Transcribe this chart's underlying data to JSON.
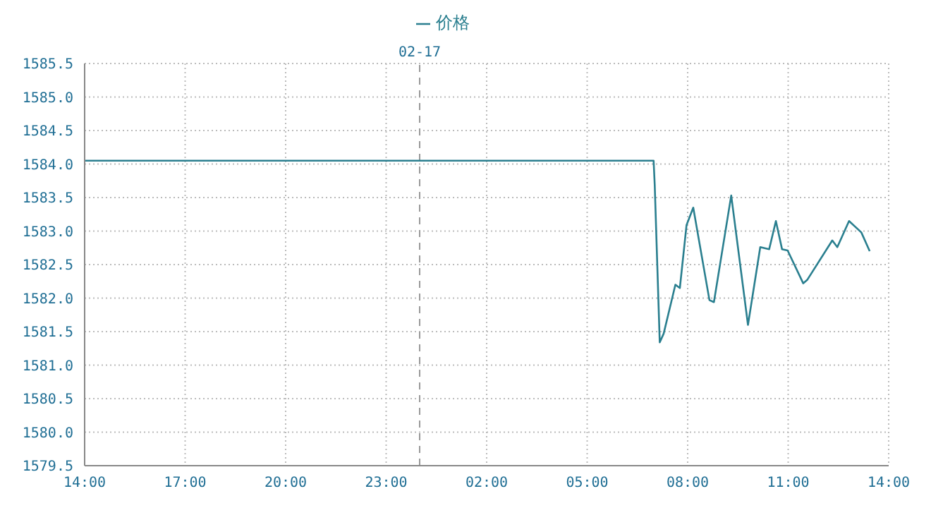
{
  "chart_data": {
    "type": "line",
    "x": [
      "--02-16T14:00",
      "--02-17T06:59",
      "--02-17T07:01",
      "--02-17T07:10",
      "--02-17T07:17",
      "--02-17T07:38",
      "--02-17T07:46",
      "--02-17T07:58",
      "--02-17T08:10",
      "--02-17T08:39",
      "--02-17T08:47",
      "--02-17T09:18",
      "--02-17T09:48",
      "--02-17T10:10",
      "--02-17T10:26",
      "--02-17T10:38",
      "--02-17T10:49",
      "--02-17T10:59",
      "--02-17T11:27",
      "--02-17T11:34",
      "--02-17T12:19",
      "--02-17T12:28",
      "--02-17T12:49",
      "--02-17T13:11",
      "--02-17T13:26"
    ],
    "series": [
      {
        "name": "价格",
        "color": "#2a7f8f",
        "values": [
          1584.05,
          1584.05,
          1583.69,
          1581.34,
          1581.47,
          1582.2,
          1582.15,
          1583.09,
          1583.35,
          1581.97,
          1581.94,
          1583.53,
          1581.6,
          1582.76,
          1582.73,
          1583.15,
          1582.73,
          1582.71,
          1582.22,
          1582.27,
          1582.86,
          1582.76,
          1583.15,
          1582.98,
          1582.7
        ]
      }
    ],
    "xlim": [
      "--02-16T14:00",
      "--02-17T14:00"
    ],
    "xticks": [
      {
        "value": "--02-16T14:00",
        "label": "14:00"
      },
      {
        "value": "--02-16T17:00",
        "label": "17:00"
      },
      {
        "value": "--02-16T20:00",
        "label": "20:00"
      },
      {
        "value": "--02-16T23:00",
        "label": "23:00"
      },
      {
        "value": "--02-17T02:00",
        "label": "02:00"
      },
      {
        "value": "--02-17T05:00",
        "label": "05:00"
      },
      {
        "value": "--02-17T08:00",
        "label": "08:00"
      },
      {
        "value": "--02-17T11:00",
        "label": "11:00"
      },
      {
        "value": "--02-17T14:00",
        "label": "14:00"
      }
    ],
    "ylim": [
      1579.5,
      1585.5
    ],
    "yticks": [
      1579.5,
      {
        "value": 1580,
        "label": "1580.0"
      },
      1580.5,
      {
        "value": 1581,
        "label": "1581.0"
      },
      1581.5,
      {
        "value": 1582,
        "label": "1582.0"
      },
      1582.5,
      {
        "value": 1583,
        "label": "1583.0"
      },
      1583.5,
      {
        "value": 1584,
        "label": "1584.0"
      },
      1584.5,
      {
        "value": 1585,
        "label": "1585.0"
      },
      1585.5
    ],
    "ref_lines": [
      {
        "axis": "x",
        "value": "--02-17T00:00",
        "label": "02-17",
        "color": "#999999",
        "line_style": "dashed"
      }
    ],
    "grid": true,
    "legend": "top",
    "marker": "none",
    "line_style": "solid"
  }
}
